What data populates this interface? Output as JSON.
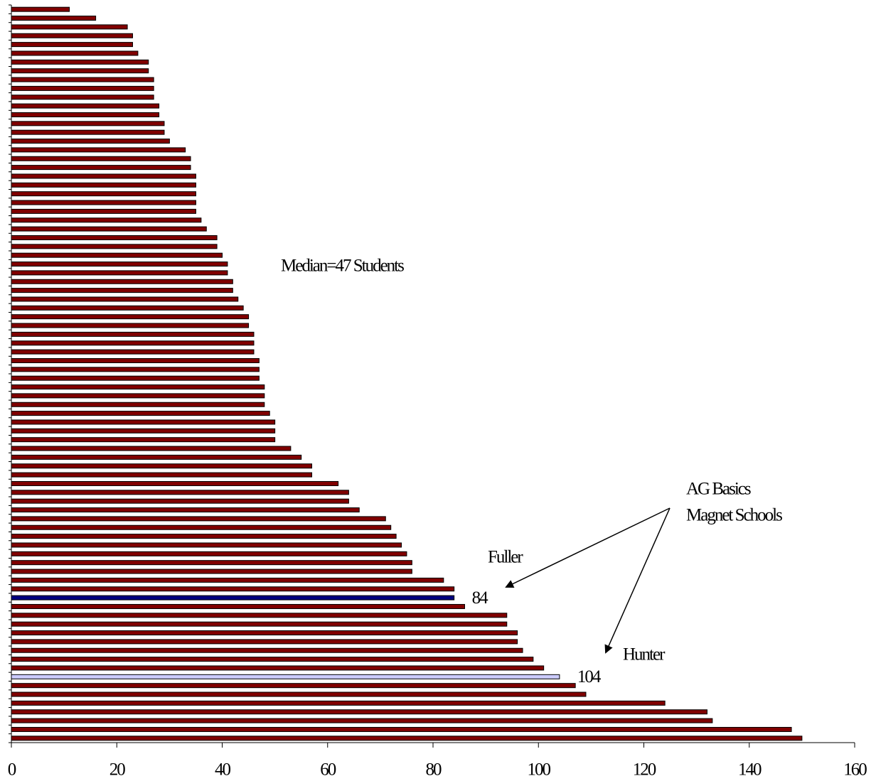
{
  "chart_data": {
    "type": "barh",
    "values": [
      11,
      16,
      22,
      23,
      23,
      24,
      26,
      26,
      27,
      27,
      27,
      28,
      28,
      29,
      29,
      30,
      33,
      34,
      34,
      35,
      35,
      35,
      35,
      35,
      36,
      37,
      39,
      39,
      40,
      41,
      41,
      42,
      42,
      43,
      44,
      45,
      45,
      46,
      46,
      46,
      47,
      47,
      47,
      48,
      48,
      48,
      49,
      50,
      50,
      50,
      53,
      55,
      57,
      57,
      62,
      64,
      64,
      66,
      71,
      72,
      73,
      74,
      75,
      76,
      76,
      82,
      84,
      84,
      86,
      94,
      94,
      96,
      96,
      97,
      99,
      101,
      104,
      107,
      109,
      124,
      132,
      133,
      148,
      150
    ],
    "colors": [
      "#800000",
      "#800000",
      "#800000",
      "#800000",
      "#800000",
      "#800000",
      "#800000",
      "#800000",
      "#800000",
      "#800000",
      "#800000",
      "#800000",
      "#800000",
      "#800000",
      "#800000",
      "#800000",
      "#800000",
      "#800000",
      "#800000",
      "#800000",
      "#800000",
      "#800000",
      "#800000",
      "#800000",
      "#800000",
      "#800000",
      "#800000",
      "#800000",
      "#800000",
      "#800000",
      "#800000",
      "#800000",
      "#800000",
      "#800000",
      "#800000",
      "#800000",
      "#800000",
      "#800000",
      "#800000",
      "#800000",
      "#800000",
      "#800000",
      "#800000",
      "#800000",
      "#800000",
      "#800000",
      "#800000",
      "#800000",
      "#800000",
      "#800000",
      "#800000",
      "#800000",
      "#800000",
      "#800000",
      "#800000",
      "#800000",
      "#800000",
      "#800000",
      "#800000",
      "#800000",
      "#800000",
      "#800000",
      "#800000",
      "#800000",
      "#800000",
      "#800000",
      "#800000",
      "#000080",
      "#800000",
      "#800000",
      "#800000",
      "#800000",
      "#800000",
      "#800000",
      "#800000",
      "#800000",
      "#ccccff",
      "#800000",
      "#800000",
      "#800000",
      "#800000",
      "#800000",
      "#800000",
      "#800000"
    ],
    "labeled_bars": [
      67,
      76
    ],
    "xlim": [
      0,
      160
    ],
    "xticks": [
      0,
      20,
      40,
      60,
      80,
      100,
      120,
      140,
      160
    ],
    "annotations": {
      "median": "Median=47 Students",
      "group_line1": "AG Basics",
      "group_line2": "Magnet Schools",
      "fuller": "Fuller",
      "hunter": "Hunter"
    }
  }
}
